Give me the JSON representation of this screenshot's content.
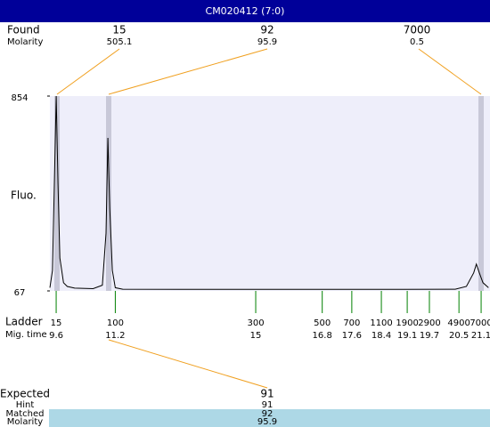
{
  "header": {
    "title": "CM020412 (7:0)"
  },
  "found": {
    "label": "Found",
    "molarity_label": "Molarity",
    "peaks": [
      {
        "size": 15,
        "molarity": 505.1
      },
      {
        "size": 92,
        "molarity": 95.9
      },
      {
        "size": 7000,
        "molarity": 0.5
      }
    ]
  },
  "chart_data": {
    "type": "line",
    "y_label": "Fluo.",
    "color": "#000000",
    "x": [
      9.43,
      9.5,
      9.55,
      9.6,
      9.65,
      9.7,
      9.8,
      9.9,
      10.1,
      10.6,
      10.85,
      10.95,
      11.0,
      11.05,
      11.12,
      11.2,
      11.4,
      13,
      15,
      17,
      19,
      20.4,
      20.7,
      20.9,
      20.97,
      21.05,
      21.15,
      21.3
    ],
    "values": [
      80,
      150,
      500,
      854,
      500,
      200,
      100,
      85,
      78,
      76,
      90,
      300,
      685,
      400,
      150,
      80,
      74,
      73,
      73,
      73,
      73,
      74,
      85,
      140,
      175,
      140,
      100,
      80
    ],
    "xlim": [
      9.43,
      21.34
    ],
    "ylim": [
      67,
      854
    ],
    "yticks": [
      67,
      854
    ]
  },
  "ladder": {
    "label": "Ladder",
    "time_label": "Mig. time",
    "sizes": [
      15,
      100,
      300,
      500,
      700,
      1100,
      1900,
      2900,
      4900,
      7000
    ],
    "times": [
      9.6,
      11.2,
      15,
      16.8,
      17.6,
      18.4,
      19.1,
      19.7,
      20.5,
      21.1
    ]
  },
  "expected": {
    "rows": [
      {
        "label": "Expected",
        "value": 91
      },
      {
        "label": "Hint",
        "value": 91
      },
      {
        "label": "Matched",
        "value": 92
      },
      {
        "label": "Molarity",
        "value": 95.9
      }
    ]
  }
}
